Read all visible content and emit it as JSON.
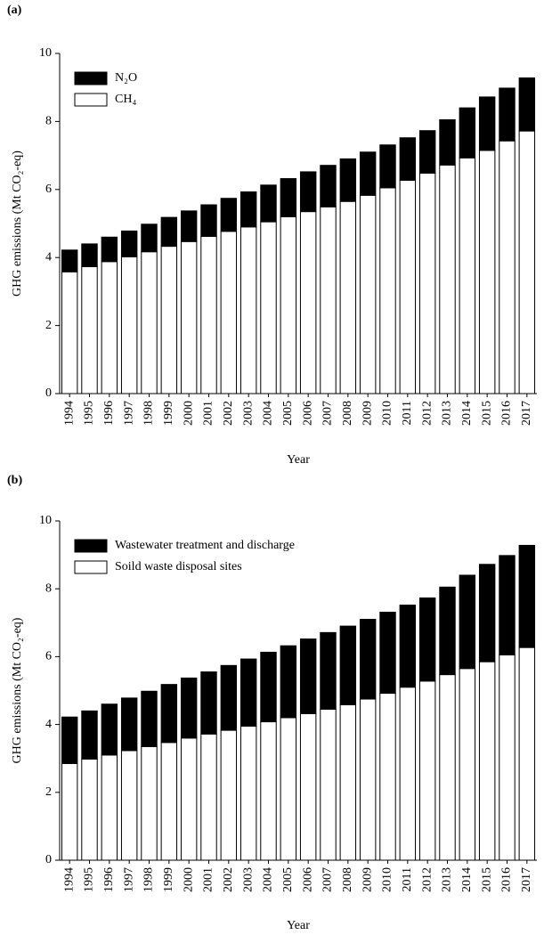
{
  "chart_data": [
    {
      "type": "stacked_bar",
      "title": "(a)",
      "xlabel": "Year",
      "ylabel": "GHG emissions (Mt CO₂-eq)",
      "categories": [
        "1994",
        "1995",
        "1996",
        "1997",
        "1998",
        "1999",
        "2000",
        "2001",
        "2002",
        "2003",
        "2004",
        "2005",
        "2006",
        "2007",
        "2008",
        "2009",
        "2010",
        "2011",
        "2012",
        "2013",
        "2014",
        "2015",
        "2016",
        "2017"
      ],
      "series": [
        {
          "name": "CH₄",
          "color": "#ffffff",
          "values": [
            3.58,
            3.73,
            3.88,
            4.02,
            4.17,
            4.33,
            4.47,
            4.62,
            4.77,
            4.9,
            5.05,
            5.2,
            5.35,
            5.49,
            5.65,
            5.83,
            6.05,
            6.27,
            6.48,
            6.72,
            6.93,
            7.15,
            7.43,
            7.72
          ]
        },
        {
          "name": "N₂O",
          "color": "#000000",
          "values": [
            0.64,
            0.67,
            0.72,
            0.76,
            0.81,
            0.85,
            0.9,
            0.93,
            0.97,
            1.03,
            1.08,
            1.12,
            1.17,
            1.22,
            1.25,
            1.27,
            1.26,
            1.25,
            1.25,
            1.33,
            1.47,
            1.57,
            1.55,
            1.56
          ]
        }
      ],
      "ylim": [
        0,
        10
      ],
      "yticks": [
        0,
        2,
        4,
        6,
        8,
        10
      ],
      "grid": false,
      "legend": "upper left"
    },
    {
      "type": "stacked_bar",
      "title": "(b)",
      "xlabel": "Year",
      "ylabel": "GHG emissions (Mt CO₂-eq)",
      "categories": [
        "1994",
        "1995",
        "1996",
        "1997",
        "1998",
        "1999",
        "2000",
        "2001",
        "2002",
        "2003",
        "2004",
        "2005",
        "2006",
        "2007",
        "2008",
        "2009",
        "2010",
        "2011",
        "2012",
        "2013",
        "2014",
        "2015",
        "2016",
        "2017"
      ],
      "series": [
        {
          "name": "Soild waste disposal sites",
          "color": "#ffffff",
          "values": [
            2.85,
            2.98,
            3.1,
            3.23,
            3.35,
            3.47,
            3.6,
            3.72,
            3.83,
            3.95,
            4.08,
            4.2,
            4.32,
            4.45,
            4.58,
            4.75,
            4.92,
            5.1,
            5.28,
            5.47,
            5.65,
            5.85,
            6.05,
            6.27
          ]
        },
        {
          "name": "Wastewater treatment and discharge",
          "color": "#000000",
          "values": [
            1.37,
            1.42,
            1.5,
            1.55,
            1.63,
            1.71,
            1.77,
            1.83,
            1.91,
            1.98,
            2.05,
            2.12,
            2.2,
            2.26,
            2.32,
            2.35,
            2.39,
            2.42,
            2.45,
            2.58,
            2.75,
            2.87,
            2.93,
            3.01
          ]
        }
      ],
      "ylim": [
        0,
        10
      ],
      "yticks": [
        0,
        2,
        4,
        6,
        8,
        10
      ],
      "grid": false,
      "legend": "upper left"
    }
  ]
}
